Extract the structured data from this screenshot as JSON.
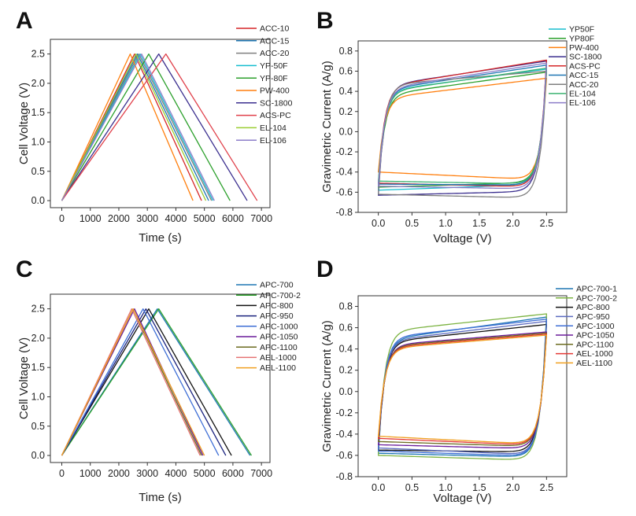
{
  "chart_data": [
    {
      "panel": "A",
      "type": "line",
      "xlabel": "Time (s)",
      "ylabel": "Cell Voltage (V)",
      "xlim": [
        -400,
        7300
      ],
      "ylim": [
        -0.12,
        2.75
      ],
      "xticks": [
        0,
        1000,
        2000,
        3000,
        4000,
        5000,
        6000,
        7000
      ],
      "yticks": [
        0.0,
        0.5,
        1.0,
        1.5,
        2.0,
        2.5
      ],
      "ytick_format": 1,
      "legend_position": "top-right",
      "series": [
        {
          "name": "ACC-10",
          "color": "#d62728",
          "x": [
            0,
            2550,
            4900
          ],
          "y": [
            0.0,
            2.5,
            0.0
          ]
        },
        {
          "name": "ACC-15",
          "color": "#1f77b4",
          "x": [
            0,
            2650,
            5150
          ],
          "y": [
            0.0,
            2.5,
            0.0
          ]
        },
        {
          "name": "ACC-20",
          "color": "#7f7f7f",
          "x": [
            0,
            2700,
            5250
          ],
          "y": [
            0.0,
            2.5,
            0.0
          ]
        },
        {
          "name": "YP-50F",
          "color": "#17becf",
          "x": [
            0,
            2750,
            5300
          ],
          "y": [
            0.0,
            2.5,
            0.0
          ]
        },
        {
          "name": "YP-80F",
          "color": "#2ca02c",
          "x": [
            0,
            3050,
            5900
          ],
          "y": [
            0.0,
            2.5,
            0.0
          ]
        },
        {
          "name": "PW-400",
          "color": "#ff7f0e",
          "x": [
            0,
            2400,
            4600
          ],
          "y": [
            0.0,
            2.5,
            0.0
          ]
        },
        {
          "name": "SC-1800",
          "color": "#3b2f8f",
          "x": [
            0,
            3400,
            6500
          ],
          "y": [
            0.0,
            2.5,
            0.0
          ]
        },
        {
          "name": "ACS-PC",
          "color": "#e0404a",
          "x": [
            0,
            3650,
            6850
          ],
          "y": [
            0.0,
            2.5,
            0.0
          ]
        },
        {
          "name": "EL-104",
          "color": "#9acd32",
          "x": [
            0,
            2600,
            5050
          ],
          "y": [
            0.0,
            2.5,
            0.0
          ]
        },
        {
          "name": "EL-106",
          "color": "#8c7dc9",
          "x": [
            0,
            2800,
            5350
          ],
          "y": [
            0.0,
            2.5,
            0.0
          ]
        }
      ]
    },
    {
      "panel": "B",
      "type": "line",
      "xlabel": "Voltage (V)",
      "ylabel": "Gravimetric Current (A/g)",
      "xlim": [
        -0.3,
        2.8
      ],
      "ylim": [
        -0.8,
        0.9
      ],
      "xticks": [
        0.0,
        0.5,
        1.0,
        1.5,
        2.0,
        2.5
      ],
      "yticks": [
        -0.8,
        -0.6,
        -0.4,
        -0.2,
        0.0,
        0.2,
        0.4,
        0.6,
        0.8
      ],
      "ytick_format": 1,
      "legend_position": "top-right",
      "series": [
        {
          "name": "YP50F",
          "color": "#17becf",
          "upper_start": 0.4,
          "upper_end": 0.62,
          "lower_start": -0.58,
          "lower_end": -0.52
        },
        {
          "name": "YP80F",
          "color": "#2ca02c",
          "upper_start": 0.36,
          "upper_end": 0.59,
          "lower_start": -0.55,
          "lower_end": -0.5
        },
        {
          "name": "PW-400",
          "color": "#ff7f0e",
          "upper_start": 0.33,
          "upper_end": 0.53,
          "lower_start": -0.4,
          "lower_end": -0.48
        },
        {
          "name": "SC-1800",
          "color": "#3b2f8f",
          "upper_start": 0.45,
          "upper_end": 0.7,
          "lower_start": -0.63,
          "lower_end": -0.59
        },
        {
          "name": "ACS-PC",
          "color": "#d62728",
          "upper_start": 0.44,
          "upper_end": 0.71,
          "lower_start": -0.51,
          "lower_end": -0.55
        },
        {
          "name": "ACC-15",
          "color": "#1f77b4",
          "upper_start": 0.41,
          "upper_end": 0.66,
          "lower_start": -0.52,
          "lower_end": -0.53
        },
        {
          "name": "ACC-20",
          "color": "#7f7f7f",
          "upper_start": 0.46,
          "upper_end": 0.6,
          "lower_start": -0.62,
          "lower_end": -0.66
        },
        {
          "name": "EL-104",
          "color": "#3cb371",
          "upper_start": 0.39,
          "upper_end": 0.63,
          "lower_start": -0.49,
          "lower_end": -0.52
        },
        {
          "name": "EL-106",
          "color": "#8c7dc9",
          "upper_start": 0.42,
          "upper_end": 0.68,
          "lower_start": -0.54,
          "lower_end": -0.57
        }
      ]
    },
    {
      "panel": "C",
      "type": "line",
      "xlabel": "Time (s)",
      "ylabel": "Cell Voltage (V)",
      "xlim": [
        -400,
        7300
      ],
      "ylim": [
        -0.12,
        2.75
      ],
      "xticks": [
        0,
        1000,
        2000,
        3000,
        4000,
        5000,
        6000,
        7000
      ],
      "yticks": [
        0.0,
        0.5,
        1.0,
        1.5,
        2.0,
        2.5
      ],
      "ytick_format": 1,
      "legend_position": "top-right",
      "series": [
        {
          "name": "APC-700",
          "color": "#1f77b4",
          "x": [
            0,
            3350,
            6600
          ],
          "y": [
            0.0,
            2.5,
            0.0
          ]
        },
        {
          "name": "APC-700-2",
          "color": "#2ca02c",
          "x": [
            0,
            3400,
            6650
          ],
          "y": [
            0.0,
            2.5,
            0.0
          ]
        },
        {
          "name": "APC-800",
          "color": "#111111",
          "x": [
            0,
            3050,
            5950
          ],
          "y": [
            0.0,
            2.5,
            0.0
          ]
        },
        {
          "name": "APC-950",
          "color": "#1a237e",
          "x": [
            0,
            2950,
            5750
          ],
          "y": [
            0.0,
            2.5,
            0.0
          ]
        },
        {
          "name": "APC-1000",
          "color": "#3f6fd6",
          "x": [
            0,
            2850,
            5500
          ],
          "y": [
            0.0,
            2.5,
            0.0
          ]
        },
        {
          "name": "APC-1050",
          "color": "#6a1b9a",
          "x": [
            0,
            2550,
            4950
          ],
          "y": [
            0.0,
            2.5,
            0.0
          ]
        },
        {
          "name": "APC-1100",
          "color": "#6b6b1f",
          "x": [
            0,
            2500,
            4900
          ],
          "y": [
            0.0,
            2.5,
            0.0
          ]
        },
        {
          "name": "AEL-1000",
          "color": "#e57373",
          "x": [
            0,
            2450,
            4850
          ],
          "y": [
            0.0,
            2.5,
            0.0
          ]
        },
        {
          "name": "AEL-1100",
          "color": "#f0a020",
          "x": [
            0,
            2500,
            5000
          ],
          "y": [
            0.0,
            2.5,
            0.0
          ]
        }
      ]
    },
    {
      "panel": "D",
      "type": "line",
      "xlabel": "Voltage (V)",
      "ylabel": "Gravimetric Current (A/g)",
      "xlim": [
        -0.3,
        2.8
      ],
      "ylim": [
        -0.8,
        0.9
      ],
      "xticks": [
        0.0,
        0.5,
        1.0,
        1.5,
        2.0,
        2.5
      ],
      "yticks": [
        -0.8,
        -0.6,
        -0.4,
        -0.2,
        0.0,
        0.2,
        0.4,
        0.6,
        0.8
      ],
      "ytick_format": 1,
      "legend_position": "top-right",
      "series": [
        {
          "name": "APC-700-1",
          "color": "#1f77b4",
          "upper_start": 0.48,
          "upper_end": 0.7,
          "lower_start": -0.58,
          "lower_end": -0.62
        },
        {
          "name": "APC-700-2",
          "color": "#7cb342",
          "upper_start": 0.56,
          "upper_end": 0.73,
          "lower_start": -0.6,
          "lower_end": -0.65
        },
        {
          "name": "APC-800",
          "color": "#111111",
          "upper_start": 0.46,
          "upper_end": 0.63,
          "lower_start": -0.55,
          "lower_end": -0.57
        },
        {
          "name": "APC-950",
          "color": "#5c6bc0",
          "upper_start": 0.47,
          "upper_end": 0.66,
          "lower_start": -0.53,
          "lower_end": -0.6
        },
        {
          "name": "APC-1000",
          "color": "#3f6fd6",
          "upper_start": 0.5,
          "upper_end": 0.68,
          "lower_start": -0.56,
          "lower_end": -0.61
        },
        {
          "name": "APC-1050",
          "color": "#6a1b9a",
          "upper_start": 0.43,
          "upper_end": 0.56,
          "lower_start": -0.5,
          "lower_end": -0.54
        },
        {
          "name": "APC-1100",
          "color": "#6b6b1f",
          "upper_start": 0.42,
          "upper_end": 0.55,
          "lower_start": -0.47,
          "lower_end": -0.52
        },
        {
          "name": "AEL-1000",
          "color": "#e53935",
          "upper_start": 0.41,
          "upper_end": 0.54,
          "lower_start": -0.44,
          "lower_end": -0.51
        },
        {
          "name": "AEL-1100",
          "color": "#f0a020",
          "upper_start": 0.4,
          "upper_end": 0.53,
          "lower_start": -0.42,
          "lower_end": -0.5
        }
      ]
    }
  ]
}
